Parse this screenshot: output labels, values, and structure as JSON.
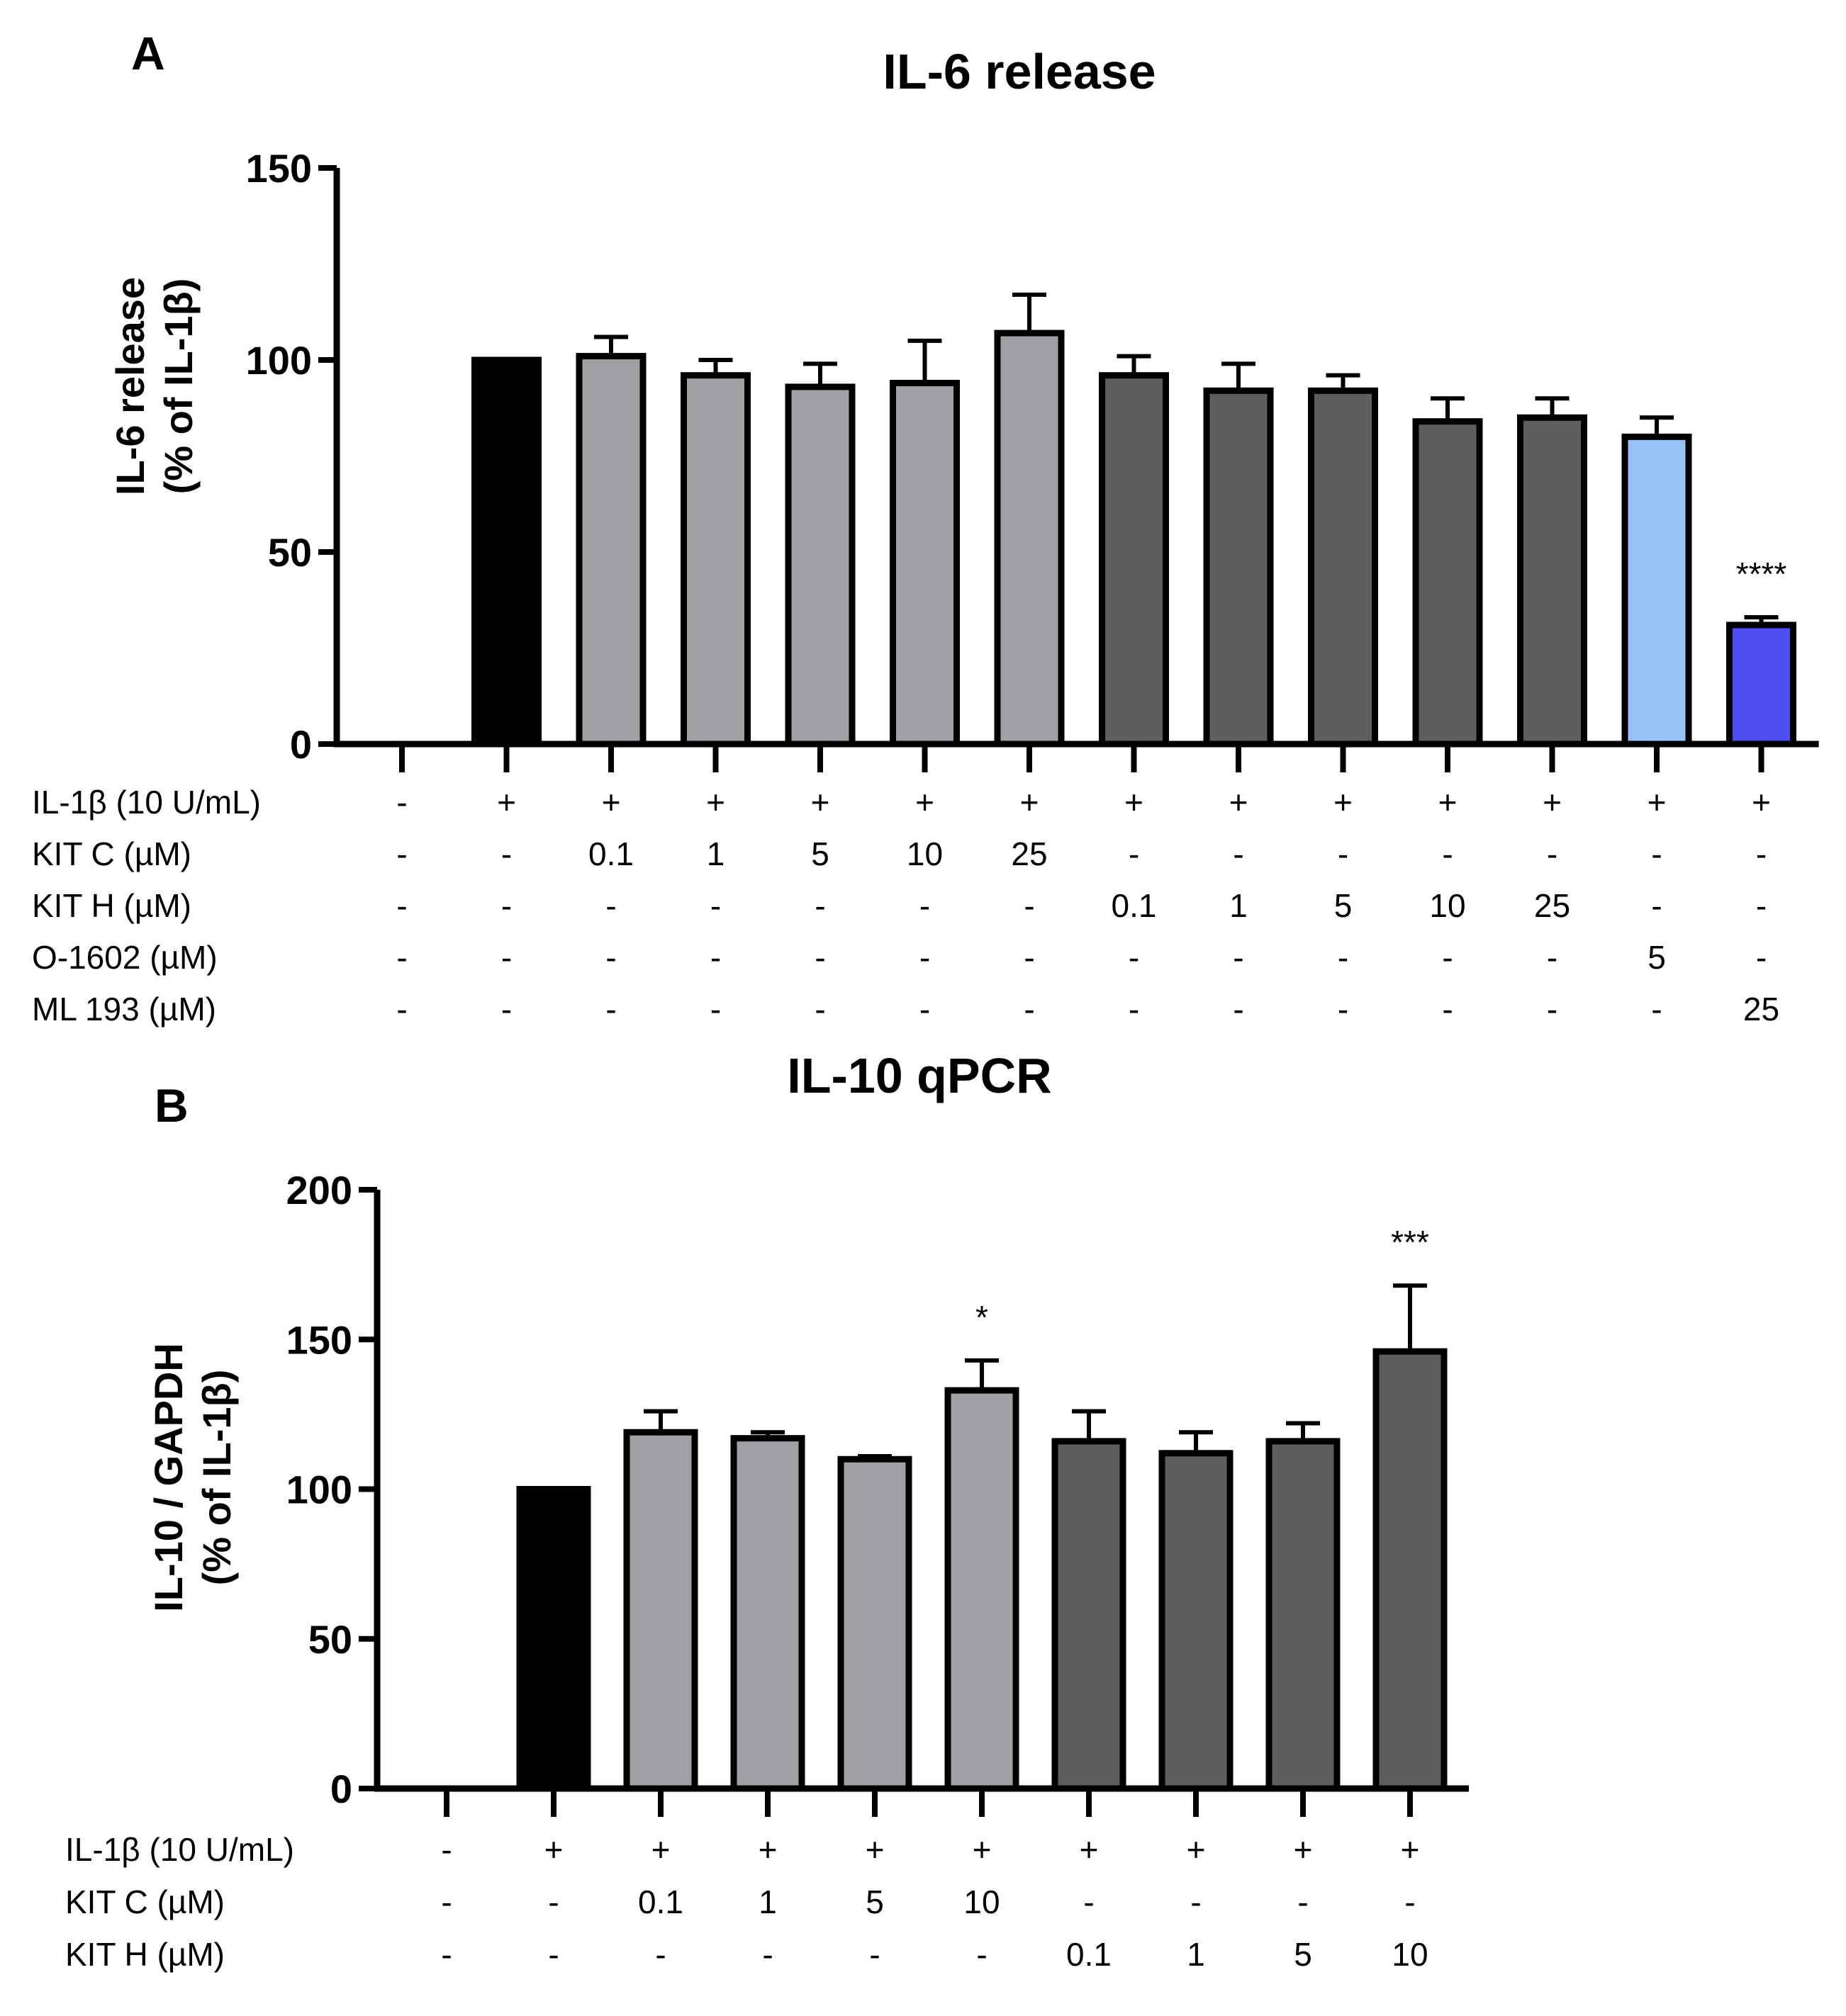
{
  "colors": {
    "control": "#000000",
    "kit_c": "#a0a0a4",
    "kit_h": "#5e5e5e",
    "o1602": "#99c2f7",
    "ml193": "#4d4df2",
    "axis": "#000000"
  },
  "chart_data": [
    {
      "panel": "A",
      "type": "bar",
      "title": "IL-6 release",
      "ylabel": [
        "IL-6 release",
        "(% of IL-1β)"
      ],
      "xlabel": "",
      "ylim": [
        0,
        150
      ],
      "yticks": [
        0,
        50,
        100,
        150
      ],
      "categories": [
        "ctrl",
        "IL-1β",
        "KIT C 0.1",
        "KIT C 1",
        "KIT C 5",
        "KIT C 10",
        "KIT C 25",
        "KIT H 0.1",
        "KIT H 1",
        "KIT H 5",
        "KIT H 10",
        "KIT H 25",
        "O-1602 5",
        "ML 193 25"
      ],
      "values": [
        null,
        100,
        101,
        96,
        93,
        94,
        107,
        96,
        92,
        92,
        84,
        85,
        80,
        31
      ],
      "errors": [
        null,
        0,
        5,
        4,
        6,
        11,
        10,
        5,
        7,
        4,
        6,
        5,
        5,
        2
      ],
      "colorKeys": [
        null,
        "control",
        "kit_c",
        "kit_c",
        "kit_c",
        "kit_c",
        "kit_c",
        "kit_h",
        "kit_h",
        "kit_h",
        "kit_h",
        "kit_h",
        "o1602",
        "ml193"
      ],
      "significance": [
        "",
        "",
        "",
        "",
        "",
        "",
        "",
        "",
        "",
        "",
        "",
        "",
        "",
        "****"
      ],
      "table": [
        {
          "label": "IL-1β (10 U/mL)",
          "cells": [
            "-",
            "+",
            "+",
            "+",
            "+",
            "+",
            "+",
            "+",
            "+",
            "+",
            "+",
            "+",
            "+",
            "+"
          ]
        },
        {
          "label": "KIT C (µM)",
          "cells": [
            "-",
            "-",
            "0.1",
            "1",
            "5",
            "10",
            "25",
            "-",
            "-",
            "-",
            "-",
            "-",
            "-",
            "-"
          ]
        },
        {
          "label": "KIT H (µM)",
          "cells": [
            "-",
            "-",
            "-",
            "-",
            "-",
            "-",
            "-",
            "0.1",
            "1",
            "5",
            "10",
            "25",
            "-",
            "-"
          ]
        },
        {
          "label": "O-1602 (µM)",
          "cells": [
            "-",
            "-",
            "-",
            "-",
            "-",
            "-",
            "-",
            "-",
            "-",
            "-",
            "-",
            "-",
            "5",
            "-"
          ]
        },
        {
          "label": "ML 193 (µM)",
          "cells": [
            "-",
            "-",
            "-",
            "-",
            "-",
            "-",
            "-",
            "-",
            "-",
            "-",
            "-",
            "-",
            "-",
            "25"
          ]
        }
      ]
    },
    {
      "panel": "B",
      "type": "bar",
      "title": "IL-10 qPCR",
      "ylabel": [
        "IL-10 / GAPDH",
        "(% of IL-1β)"
      ],
      "xlabel": "",
      "ylim": [
        0,
        200
      ],
      "yticks": [
        0,
        50,
        100,
        150,
        200
      ],
      "categories": [
        "ctrl",
        "IL-1β",
        "KIT C 0.1",
        "KIT C 1",
        "KIT C 5",
        "KIT C 10",
        "KIT H 0.1",
        "KIT H 1",
        "KIT H 5",
        "KIT H 10"
      ],
      "values": [
        null,
        100,
        119,
        117,
        110,
        133,
        116,
        112,
        116,
        146
      ],
      "errors": [
        null,
        0,
        7,
        2,
        1,
        10,
        10,
        7,
        6,
        22
      ],
      "colorKeys": [
        null,
        "control",
        "kit_c",
        "kit_c",
        "kit_c",
        "kit_c",
        "kit_h",
        "kit_h",
        "kit_h",
        "kit_h"
      ],
      "significance": [
        "",
        "",
        "",
        "",
        "",
        "*",
        "",
        "",
        "",
        "***"
      ],
      "table": [
        {
          "label": "IL-1β (10 U/mL)",
          "cells": [
            "-",
            "+",
            "+",
            "+",
            "+",
            "+",
            "+",
            "+",
            "+",
            "+"
          ]
        },
        {
          "label": "KIT C (µM)",
          "cells": [
            "-",
            "-",
            "0.1",
            "1",
            "5",
            "10",
            "-",
            "-",
            "-",
            "-"
          ]
        },
        {
          "label": "KIT H (µM)",
          "cells": [
            "-",
            "-",
            "-",
            "-",
            "-",
            "-",
            "0.1",
            "1",
            "5",
            "10"
          ]
        }
      ]
    }
  ]
}
